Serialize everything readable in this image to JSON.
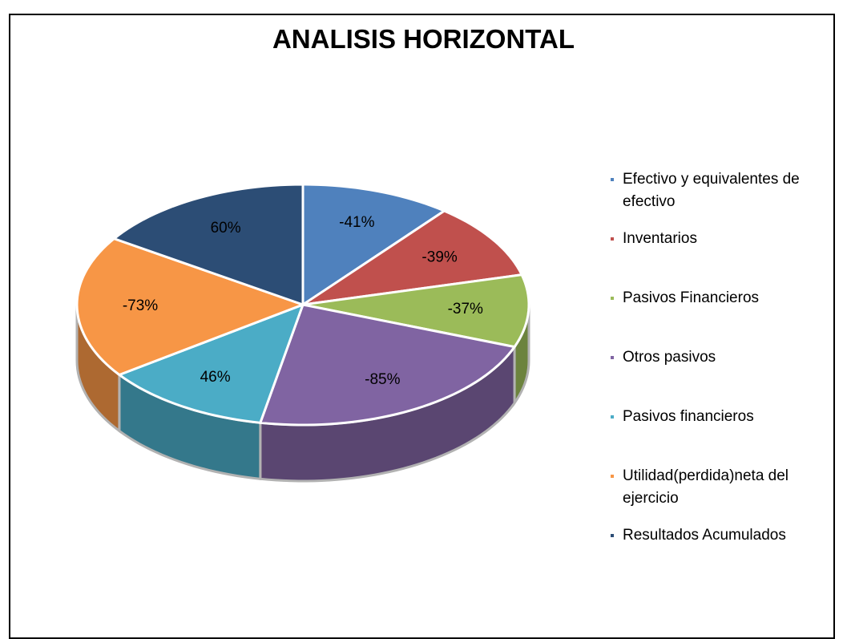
{
  "chart_data": {
    "type": "pie",
    "title": "ANALISIS HORIZONTAL",
    "categories": [
      "Efectivo y equivalentes de efectivo",
      "Inventarios",
      "Pasivos Financieros",
      "Otros pasivos",
      "Pasivos financieros",
      "Utilidad(perdida)neta del ejercicio",
      "Resultados Acumulados"
    ],
    "values": [
      -41,
      -39,
      -37,
      -85,
      46,
      -73,
      60
    ],
    "value_labels": [
      "-41%",
      "-39%",
      "-37%",
      "-85%",
      "46%",
      "-73%",
      "60%"
    ],
    "colors": [
      "#4f81bd",
      "#c0504d",
      "#9bbb59",
      "#8064a2",
      "#4bacc6",
      "#f79646",
      "#2c4d75"
    ]
  }
}
